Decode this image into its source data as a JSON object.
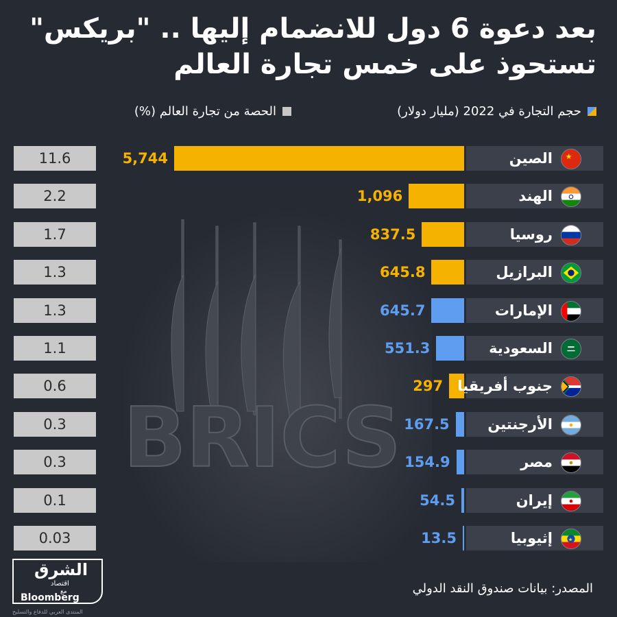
{
  "title_line1": "بعد دعوة 6 دول للانضمام إليها .. \"بريكس\"",
  "title_line2": "تستحوذ على خمس تجارة العالم",
  "legend": {
    "volume": "حجم التجارة في 2022 (مليار دولار)",
    "share": "الحصة من تجارة العالم (%)"
  },
  "colors": {
    "background": "#262a33",
    "member_bar": "#f5b300",
    "invited_bar": "#5e9df0",
    "share_box": "#c9c9c9",
    "country_box": "#3b404b"
  },
  "source": "المصدر: بيانات صندوق النقد الدولي",
  "logo": {
    "main": "الشرق",
    "sub": "اقتصاد",
    "with": "مع",
    "partner": "Bloomberg",
    "watermark": "المنتدى العربي للدفاع والتسليح"
  },
  "chart_data": {
    "type": "bar",
    "orientation": "horizontal",
    "categories": [
      "الصين",
      "الهند",
      "روسيا",
      "البرازيل",
      "الإمارات",
      "السعودية",
      "جنوب أفريقيا",
      "الأرجنتين",
      "مصر",
      "إيران",
      "إثيوبيا"
    ],
    "series": [
      {
        "values": [
          5744,
          1096,
          837.5,
          645.8,
          645.7,
          551.3,
          297,
          167.5,
          154.9,
          54.5,
          13.5
        ],
        "labels": [
          "5,744",
          "1,096",
          "837.5",
          "645.8",
          "645.7",
          "551.3",
          "297",
          "167.5",
          "154.9",
          "54.5",
          "13.5"
        ],
        "group": [
          "member",
          "member",
          "member",
          "member",
          "invited",
          "invited",
          "member",
          "invited",
          "invited",
          "invited",
          "invited"
        ]
      },
      {
        "values": [
          11.6,
          2.2,
          1.7,
          1.3,
          1.3,
          1.1,
          0.6,
          0.3,
          0.3,
          0.1,
          0.03
        ],
        "labels": [
          "11.6",
          "2.2",
          "1.7",
          "1.3",
          "1.3",
          "1.1",
          "0.6",
          "0.3",
          "0.3",
          "0.1",
          "0.03"
        ]
      }
    ],
    "flags": [
      "china",
      "india",
      "russia",
      "brazil",
      "uae",
      "saudi-arabia",
      "south-africa",
      "argentina",
      "egypt",
      "iran",
      "ethiopia"
    ]
  }
}
